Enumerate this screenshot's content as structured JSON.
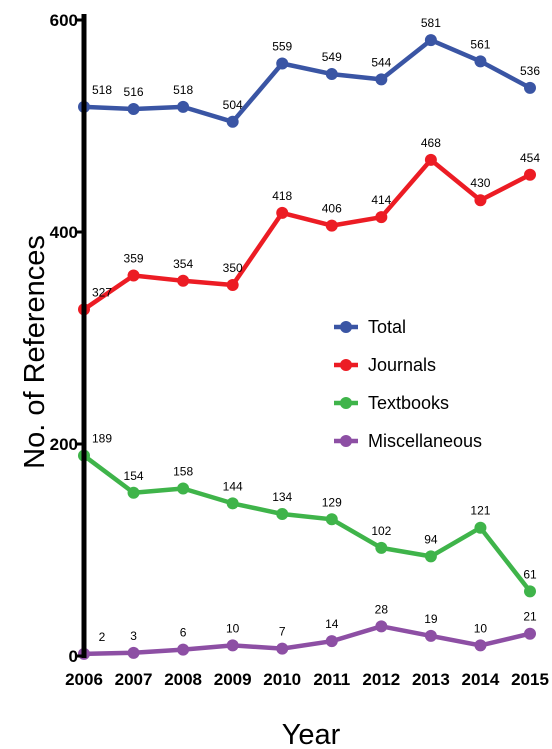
{
  "chart_data": {
    "type": "line",
    "title": "",
    "xlabel": "Year",
    "ylabel": "No. of References",
    "x": [
      "2006",
      "2007",
      "2008",
      "2009",
      "2010",
      "2011",
      "2012",
      "2013",
      "2014",
      "2015"
    ],
    "ylim": [
      0,
      600
    ],
    "yticks": [
      "0",
      "200",
      "400",
      "600"
    ],
    "grid": false,
    "legend_position": "center-right",
    "series": [
      {
        "name": "Total",
        "color": "#3a55a4",
        "values": [
          518,
          516,
          518,
          504,
          559,
          549,
          544,
          581,
          561,
          536
        ]
      },
      {
        "name": "Journals",
        "color": "#ec1c24",
        "values": [
          327,
          359,
          354,
          350,
          418,
          406,
          414,
          468,
          430,
          454
        ]
      },
      {
        "name": "Textbooks",
        "color": "#3fb44a",
        "values": [
          189,
          154,
          158,
          144,
          134,
          129,
          102,
          94,
          121,
          61
        ]
      },
      {
        "name": "Miscellaneous",
        "color": "#8d4fa4",
        "values": [
          2,
          3,
          6,
          10,
          7,
          14,
          28,
          19,
          10,
          21
        ]
      }
    ]
  }
}
